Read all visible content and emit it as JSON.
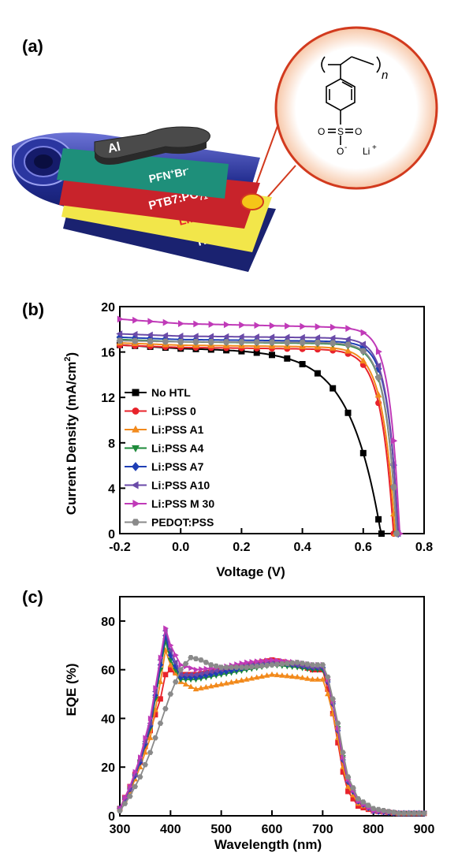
{
  "panels": {
    "a_label": "(a)",
    "b_label": "(b)",
    "c_label": "(c)"
  },
  "device": {
    "layers": {
      "al": "Al",
      "pfn": "PFN",
      "pfn_sup": "+",
      "pfn_br": "Br",
      "pfn_br_sup": "-",
      "ptb7": "PTB7:PC",
      "ptb7_sub": "71",
      "ptb7_end": "BM",
      "lipss": "Li:PSS",
      "ito": "ITO"
    },
    "molecule": {
      "n": "n",
      "o_left": "O",
      "s": "S",
      "o_right": "O",
      "o_minus": "O",
      "minus": "-",
      "li": "Li",
      "li_plus": "+"
    },
    "colors": {
      "substrate": "#1f2a8c",
      "ito": "#1a2270",
      "lipss": "#f2e64a",
      "ptb7": "#c8232b",
      "pfn": "#1e8f7a",
      "al": "#4a4a4a",
      "zoom": "#d23a1e"
    }
  },
  "chart_data": [
    {
      "type": "line",
      "xlabel": "Voltage (V)",
      "ylabel": "Current Density (mA/cm",
      "ylabel_sup": "2",
      "ylabel_end": ")",
      "xlim": [
        -0.2,
        0.8
      ],
      "ylim": [
        0,
        20
      ],
      "xticks": [
        "-0.2",
        "0.0",
        "0.2",
        "0.4",
        "0.6",
        "0.8"
      ],
      "yticks": [
        "0",
        "4",
        "8",
        "12",
        "16",
        "20"
      ],
      "legend": "bottom-left",
      "series": [
        {
          "name": "No HTL",
          "color": "#000000",
          "marker": "square",
          "voc": 0.66,
          "jsc": 16.3,
          "k": 0.1,
          "jstart": 16.6
        },
        {
          "name": "Li:PSS 0",
          "color": "#e8232b",
          "marker": "circle",
          "voc": 0.7,
          "jsc": 16.4,
          "k": 0.04,
          "jstart": 16.6
        },
        {
          "name": "Li:PSS A1",
          "color": "#f28a1c",
          "marker": "triangle-up",
          "voc": 0.705,
          "jsc": 16.6,
          "k": 0.04,
          "jstart": 16.8
        },
        {
          "name": "Li:PSS A4",
          "color": "#1d8a3a",
          "marker": "triangle-down",
          "voc": 0.71,
          "jsc": 16.9,
          "k": 0.035,
          "jstart": 17.1
        },
        {
          "name": "Li:PSS A7",
          "color": "#1f3fb5",
          "marker": "diamond",
          "voc": 0.715,
          "jsc": 17.1,
          "k": 0.033,
          "jstart": 17.3
        },
        {
          "name": "Li:PSS A10",
          "color": "#6a4aa8",
          "marker": "triangle-left",
          "voc": 0.715,
          "jsc": 17.4,
          "k": 0.033,
          "jstart": 17.6
        },
        {
          "name": "Li:PSS M 30",
          "color": "#c03ab8",
          "marker": "triangle-right",
          "voc": 0.72,
          "jsc": 18.5,
          "k": 0.032,
          "jstart": 18.9
        },
        {
          "name": "PEDOT:PSS",
          "color": "#8a8a8a",
          "marker": "hexagon",
          "voc": 0.71,
          "jsc": 16.9,
          "k": 0.035,
          "jstart": 17.0
        }
      ]
    },
    {
      "type": "line",
      "xlabel": "Wavelength (nm)",
      "ylabel": "EQE (%)",
      "xlim": [
        300,
        900
      ],
      "ylim": [
        0,
        90
      ],
      "xticks": [
        "300",
        "400",
        "500",
        "600",
        "700",
        "800",
        "900"
      ],
      "yticks": [
        "0",
        "20",
        "40",
        "60",
        "80"
      ],
      "series": [
        {
          "color": "#e8232b",
          "marker": "square",
          "points": [
            [
              300,
              3
            ],
            [
              320,
              12
            ],
            [
              340,
              22
            ],
            [
              360,
              35
            ],
            [
              380,
              48
            ],
            [
              390,
              58
            ],
            [
              400,
              60
            ],
            [
              420,
              58
            ],
            [
              450,
              58
            ],
            [
              500,
              60
            ],
            [
              550,
              62
            ],
            [
              600,
              64
            ],
            [
              650,
              62
            ],
            [
              680,
              60
            ],
            [
              700,
              60
            ],
            [
              710,
              52
            ],
            [
              720,
              42
            ],
            [
              730,
              30
            ],
            [
              740,
              18
            ],
            [
              750,
              10
            ],
            [
              770,
              4
            ],
            [
              800,
              2
            ],
            [
              850,
              1
            ],
            [
              900,
              1
            ]
          ]
        },
        {
          "color": "#f28a1c",
          "marker": "triangle-up",
          "points": [
            [
              300,
              3
            ],
            [
              320,
              10
            ],
            [
              340,
              20
            ],
            [
              360,
              32
            ],
            [
              380,
              55
            ],
            [
              390,
              68
            ],
            [
              400,
              62
            ],
            [
              420,
              55
            ],
            [
              450,
              52
            ],
            [
              500,
              54
            ],
            [
              550,
              56
            ],
            [
              600,
              58
            ],
            [
              650,
              57
            ],
            [
              680,
              56
            ],
            [
              700,
              56
            ],
            [
              710,
              50
            ],
            [
              720,
              42
            ],
            [
              730,
              32
            ],
            [
              740,
              20
            ],
            [
              750,
              12
            ],
            [
              770,
              5
            ],
            [
              800,
              2
            ],
            [
              850,
              1
            ],
            [
              900,
              1
            ]
          ]
        },
        {
          "color": "#1d8a3a",
          "marker": "triangle-down",
          "points": [
            [
              300,
              3
            ],
            [
              320,
              11
            ],
            [
              340,
              22
            ],
            [
              360,
              36
            ],
            [
              380,
              60
            ],
            [
              390,
              72
            ],
            [
              400,
              64
            ],
            [
              420,
              56
            ],
            [
              450,
              56
            ],
            [
              500,
              58
            ],
            [
              550,
              60
            ],
            [
              600,
              62
            ],
            [
              650,
              61
            ],
            [
              680,
              60
            ],
            [
              700,
              60
            ],
            [
              710,
              55
            ],
            [
              720,
              46
            ],
            [
              730,
              36
            ],
            [
              740,
              24
            ],
            [
              750,
              15
            ],
            [
              770,
              6
            ],
            [
              800,
              2
            ],
            [
              850,
              1
            ],
            [
              900,
              1
            ]
          ]
        },
        {
          "color": "#1f3fb5",
          "marker": "diamond",
          "points": [
            [
              300,
              3
            ],
            [
              320,
              11
            ],
            [
              340,
              22
            ],
            [
              360,
              37
            ],
            [
              380,
              62
            ],
            [
              390,
              74
            ],
            [
              400,
              66
            ],
            [
              420,
              57
            ],
            [
              450,
              57
            ],
            [
              500,
              59
            ],
            [
              550,
              61
            ],
            [
              600,
              63
            ],
            [
              650,
              62
            ],
            [
              680,
              61
            ],
            [
              700,
              61
            ],
            [
              710,
              55
            ],
            [
              720,
              46
            ],
            [
              730,
              35
            ],
            [
              740,
              23
            ],
            [
              750,
              14
            ],
            [
              770,
              6
            ],
            [
              800,
              2
            ],
            [
              850,
              1
            ],
            [
              900,
              1
            ]
          ]
        },
        {
          "color": "#6a4aa8",
          "marker": "triangle-left",
          "points": [
            [
              300,
              3
            ],
            [
              320,
              11
            ],
            [
              340,
              23
            ],
            [
              360,
              38
            ],
            [
              380,
              64
            ],
            [
              390,
              76
            ],
            [
              400,
              68
            ],
            [
              420,
              58
            ],
            [
              450,
              58
            ],
            [
              500,
              60
            ],
            [
              550,
              62
            ],
            [
              600,
              63
            ],
            [
              650,
              62
            ],
            [
              680,
              61
            ],
            [
              700,
              61
            ],
            [
              710,
              55
            ],
            [
              720,
              46
            ],
            [
              730,
              35
            ],
            [
              740,
              23
            ],
            [
              750,
              14
            ],
            [
              770,
              6
            ],
            [
              800,
              2
            ],
            [
              850,
              1
            ],
            [
              900,
              1
            ]
          ]
        },
        {
          "color": "#c03ab8",
          "marker": "triangle-right",
          "points": [
            [
              300,
              3
            ],
            [
              320,
              12
            ],
            [
              340,
              24
            ],
            [
              360,
              40
            ],
            [
              380,
              65
            ],
            [
              390,
              77
            ],
            [
              400,
              70
            ],
            [
              420,
              62
            ],
            [
              450,
              60
            ],
            [
              500,
              61
            ],
            [
              550,
              63
            ],
            [
              600,
              64
            ],
            [
              650,
              63
            ],
            [
              680,
              62
            ],
            [
              700,
              62
            ],
            [
              710,
              56
            ],
            [
              720,
              47
            ],
            [
              730,
              36
            ],
            [
              740,
              24
            ],
            [
              750,
              15
            ],
            [
              770,
              6
            ],
            [
              800,
              2
            ],
            [
              850,
              1
            ],
            [
              900,
              1
            ]
          ]
        },
        {
          "color": "#8a8a8a",
          "marker": "hexagon",
          "points": [
            [
              300,
              2
            ],
            [
              320,
              8
            ],
            [
              340,
              16
            ],
            [
              360,
              26
            ],
            [
              380,
              38
            ],
            [
              400,
              50
            ],
            [
              420,
              60
            ],
            [
              440,
              65
            ],
            [
              460,
              64
            ],
            [
              480,
              62
            ],
            [
              500,
              61
            ],
            [
              550,
              61
            ],
            [
              600,
              62
            ],
            [
              650,
              63
            ],
            [
              680,
              62
            ],
            [
              700,
              62
            ],
            [
              710,
              57
            ],
            [
              720,
              48
            ],
            [
              730,
              38
            ],
            [
              740,
              26
            ],
            [
              750,
              16
            ],
            [
              770,
              7
            ],
            [
              800,
              3
            ],
            [
              850,
              1
            ],
            [
              900,
              1
            ]
          ]
        }
      ]
    }
  ]
}
